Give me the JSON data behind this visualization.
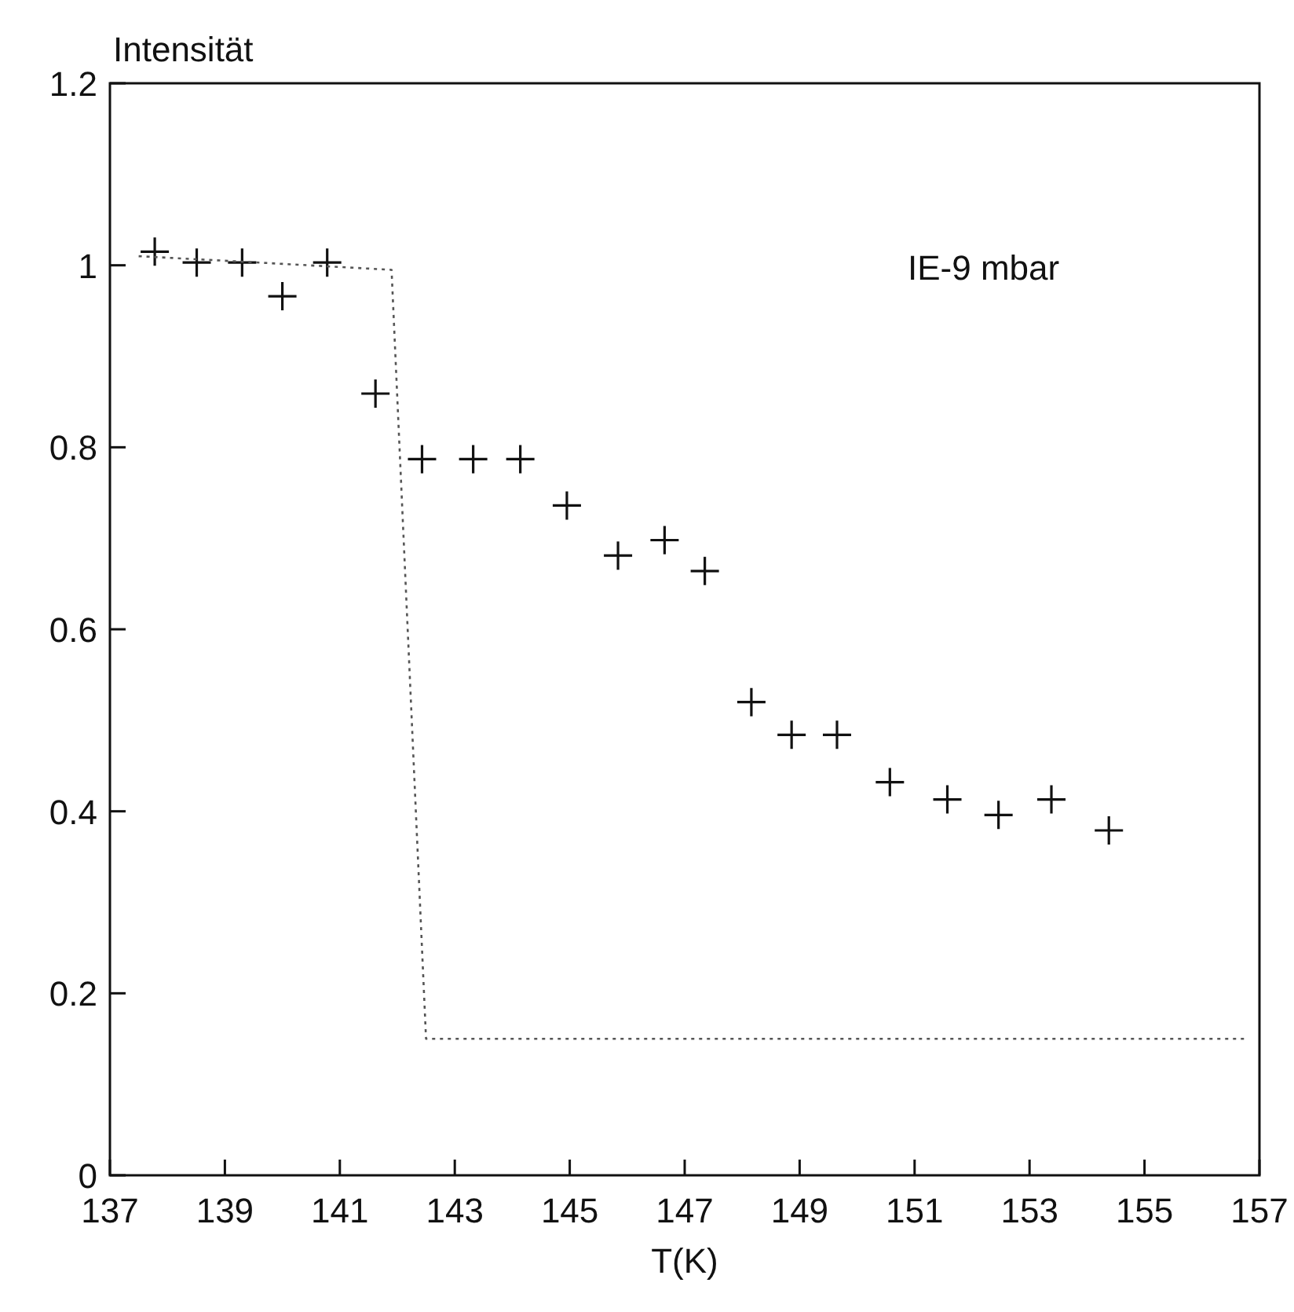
{
  "chart_data": {
    "type": "scatter",
    "xlabel": "T(K)",
    "ylabel": "Intensität",
    "xlim": [
      137,
      157
    ],
    "xticks": [
      137,
      139,
      141,
      143,
      145,
      147,
      149,
      151,
      153,
      155,
      157
    ],
    "ylim": [
      0,
      1.2
    ],
    "yticks": [
      0,
      0.2,
      0.4,
      0.6,
      0.8,
      1,
      1.2
    ],
    "grid": false,
    "series": [
      {
        "color": "#111111",
        "marker": "cross",
        "x": [
          137.78,
          138.51,
          139.3,
          140.0,
          140.78,
          141.62,
          142.43,
          143.32,
          144.14,
          144.95,
          145.84,
          146.65,
          147.35,
          148.16,
          148.86,
          149.65,
          150.57,
          151.57,
          152.46,
          153.38,
          154.38
        ],
        "values": [
          1.015,
          1.003,
          1.003,
          0.966,
          1.003,
          0.859,
          0.787,
          0.787,
          0.787,
          0.736,
          0.681,
          0.698,
          0.664,
          0.52,
          0.484,
          0.484,
          0.432,
          0.413,
          0.396,
          0.413,
          0.379
        ]
      },
      {
        "type": "line",
        "color": "#555555",
        "line_style": "dotted",
        "marker": "none",
        "x": [
          137.5,
          139,
          141.9,
          142.5,
          156.8
        ],
        "values": [
          1.01,
          1.005,
          0.995,
          0.15,
          0.15
        ]
      }
    ],
    "annotations": [
      "IE-9 mbar"
    ]
  }
}
